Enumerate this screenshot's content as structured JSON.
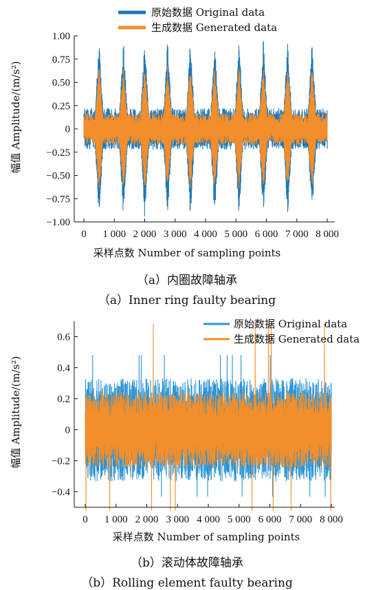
{
  "colors": {
    "original_a": "#1f77b4",
    "original_b": "#2a93d5",
    "generated": "#f28e2b",
    "axis": "#111111"
  },
  "captions": {
    "a_cn": "（a）内圈故障轴承",
    "a_en": "（a）Inner ring faulty bearing",
    "b_cn": "（b）滚动体故障轴承",
    "b_en": "（b）Rolling element faulty bearing"
  },
  "chart_data": [
    {
      "type": "line",
      "xlabel": "采样点数 Number of sampling points",
      "ylabel": "幅值 Amplitude/(m/s²)",
      "xlim": [
        0,
        8000
      ],
      "ylim": [
        -1.0,
        1.0
      ],
      "x_ticks": [
        0,
        1000,
        2000,
        3000,
        4000,
        5000,
        6000,
        7000,
        8000
      ],
      "x_tick_labels": [
        "0",
        "1 000",
        "2 000",
        "3 000",
        "4 000",
        "5 000",
        "6 000",
        "7 000",
        "8 000"
      ],
      "y_ticks": [
        1.0,
        0.75,
        0.5,
        0.25,
        0,
        -0.25,
        -0.5,
        -0.75,
        -1.0
      ],
      "y_tick_labels": [
        "1.00",
        "0.75",
        "0.50",
        "0.25",
        "0",
        "−0.25",
        "−0.50",
        "−0.75",
        "−1.00"
      ],
      "grid": false,
      "legend_position": "top-center",
      "series": [
        {
          "name": "原始数据 Original data",
          "color": "#1f77b4",
          "base_amplitude": 0.2,
          "peak_x": [
            500,
            1300,
            2000,
            2750,
            3500,
            4300,
            5100,
            5900,
            6700,
            7500
          ],
          "peak_amplitude": 0.97
        },
        {
          "name": "生成数据 Generated data",
          "color": "#f28e2b",
          "base_amplitude": 0.15,
          "peak_x": [
            500,
            1300,
            2000,
            2750,
            3500,
            4300,
            5100,
            5900,
            6700,
            7500
          ],
          "peak_amplitude": 0.68
        }
      ]
    },
    {
      "type": "line",
      "xlabel": "采样点数 Number of sampling points",
      "ylabel": "幅值 Amplitude/(m/s²)",
      "xlim": [
        0,
        8000
      ],
      "ylim": [
        -0.5,
        0.7
      ],
      "x_ticks": [
        0,
        1000,
        2000,
        3000,
        4000,
        5000,
        6000,
        7000,
        8000
      ],
      "x_tick_labels": [
        "0",
        "1 000",
        "2 000",
        "3 000",
        "4 000",
        "5 000",
        "6 000",
        "7 000",
        "8 000"
      ],
      "y_ticks": [
        0.6,
        0.4,
        0.2,
        0,
        -0.2,
        -0.4
      ],
      "y_tick_labels": [
        "0.6",
        "0.4",
        "0.2",
        "0",
        "−0.2",
        "−0.4"
      ],
      "grid": false,
      "legend_position": "top-right",
      "series": [
        {
          "name": "原始数据 Original data",
          "color": "#2a93d5",
          "base_amplitude": 0.3,
          "min": -0.43,
          "max": 0.48
        },
        {
          "name": "生成数据 Generated data",
          "color": "#f28e2b",
          "base_amplitude": 0.22,
          "min": -0.52,
          "max": 0.68
        }
      ]
    }
  ]
}
